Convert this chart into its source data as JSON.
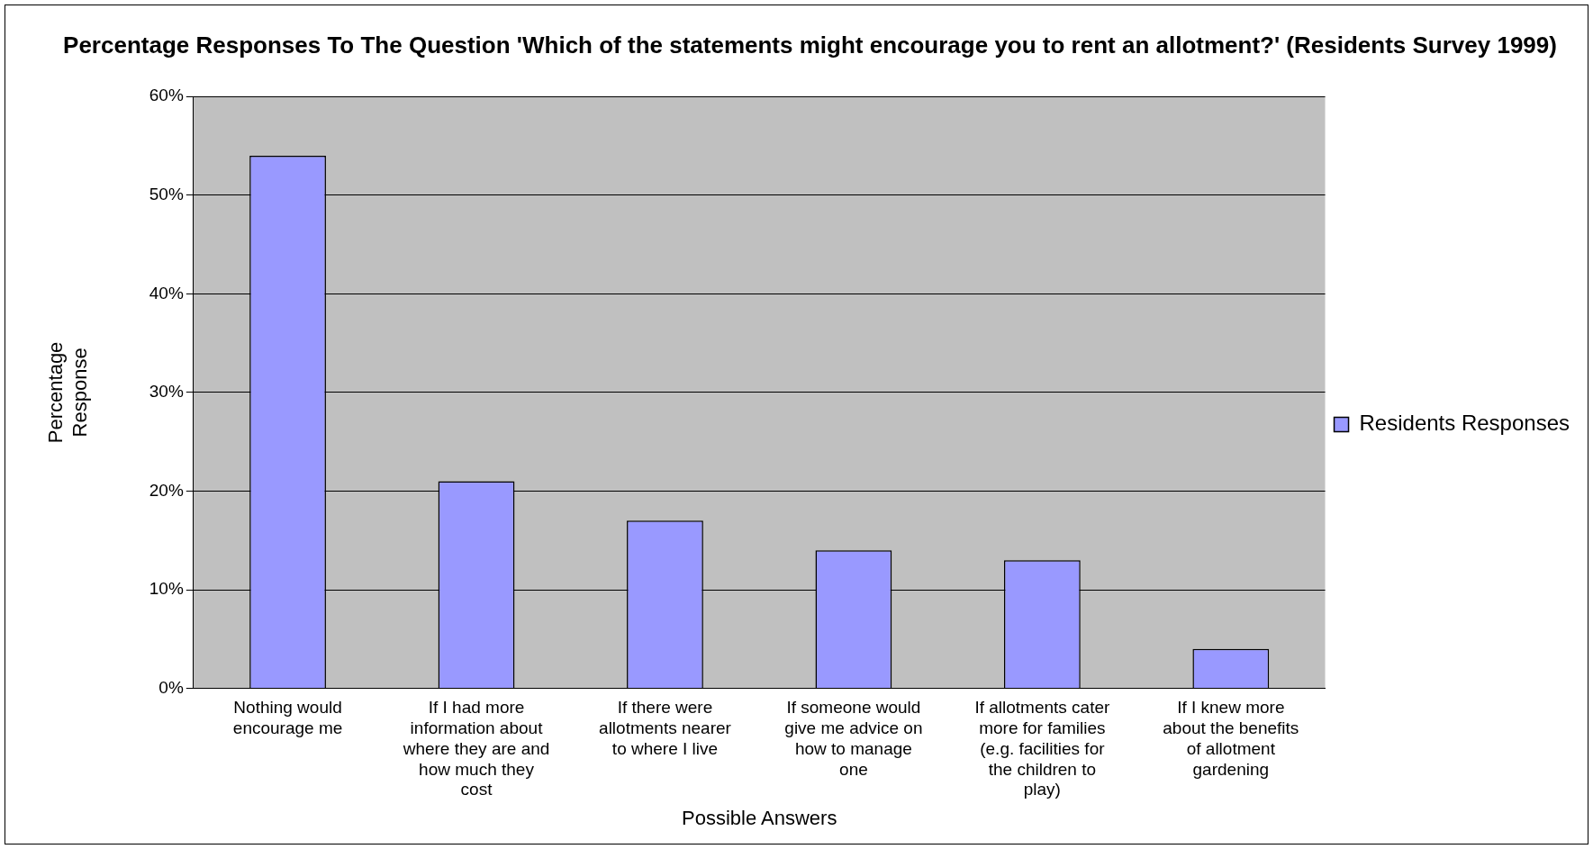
{
  "chart_data": {
    "type": "bar",
    "title": "Percentage Responses To The Question 'Which of the statements might encourage you to rent an allotment?' (Residents Survey 1999)",
    "xlabel": "Possible Answers",
    "ylabel": "Percentage Response",
    "categories": [
      "Nothing would encourage me",
      "If I had more information about where they are and how much they cost",
      "If there were allotments nearer to where I live",
      "If someone would give me advice on how to manage one",
      "If allotments cater more for families (e.g. facilities for the children to play)",
      "If I knew more about the benefits of allotment gardening"
    ],
    "series": [
      {
        "name": "Residents Responses",
        "color": "#9999ff",
        "values": [
          54,
          21,
          17,
          14,
          13,
          4
        ]
      }
    ],
    "ylim": [
      0,
      60
    ],
    "yticks": [
      {
        "value": 0,
        "label": "0%"
      },
      {
        "value": 10,
        "label": "10%"
      },
      {
        "value": 20,
        "label": "20%"
      },
      {
        "value": 30,
        "label": "30%"
      },
      {
        "value": 40,
        "label": "40%"
      },
      {
        "value": 50,
        "label": "50%"
      },
      {
        "value": 60,
        "label": "60%"
      }
    ],
    "grid": "y",
    "legend": "right"
  }
}
